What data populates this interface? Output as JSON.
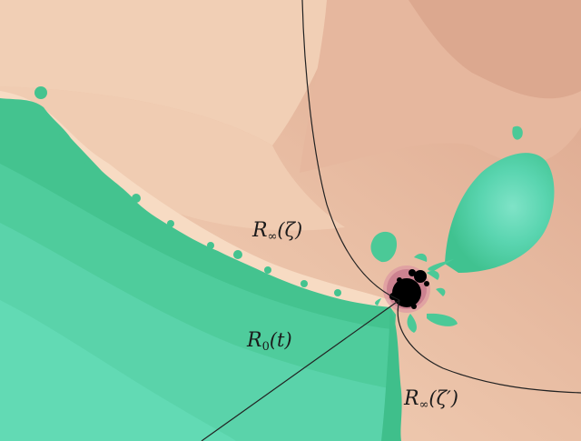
{
  "figure": {
    "colors": {
      "exterior_light": "#f4d2b8",
      "exterior_mid": "#e9bda4",
      "exterior_dark": "#dba990",
      "interior_light": "#5fd7b3",
      "interior_mid": "#45c592",
      "interior_dark": "#30b77c",
      "boundary_fringe": "#f8dcc4",
      "set_black": "#000000",
      "ray_color": "#222222",
      "fringe_pink": "#d96b8a"
    },
    "labels": {
      "ray_inf_zeta": {
        "calligraphic": "R",
        "subscript": "∞",
        "argument": "(ζ)"
      },
      "ray_zero_t": {
        "calligraphic": "R",
        "subscript": "0",
        "argument": "(t)"
      },
      "ray_inf_zeta_prime": {
        "calligraphic": "R",
        "subscript": "∞",
        "argument": "(ζ′)"
      }
    }
  }
}
